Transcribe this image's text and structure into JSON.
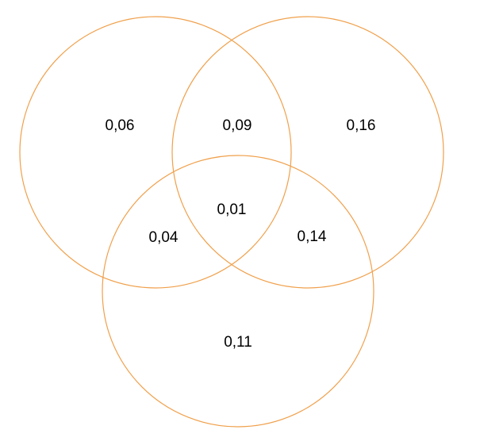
{
  "diagram": {
    "type": "venn-3",
    "colors": {
      "circle_stroke": "#f0a04b",
      "label_text": "#000000"
    },
    "regions": {
      "a_only": "0,06",
      "ab_only": "0,09",
      "b_only": "0,16",
      "abc": "0,01",
      "ac_only": "0,04",
      "bc_only": "0,14",
      "c_only": "0,11"
    }
  }
}
